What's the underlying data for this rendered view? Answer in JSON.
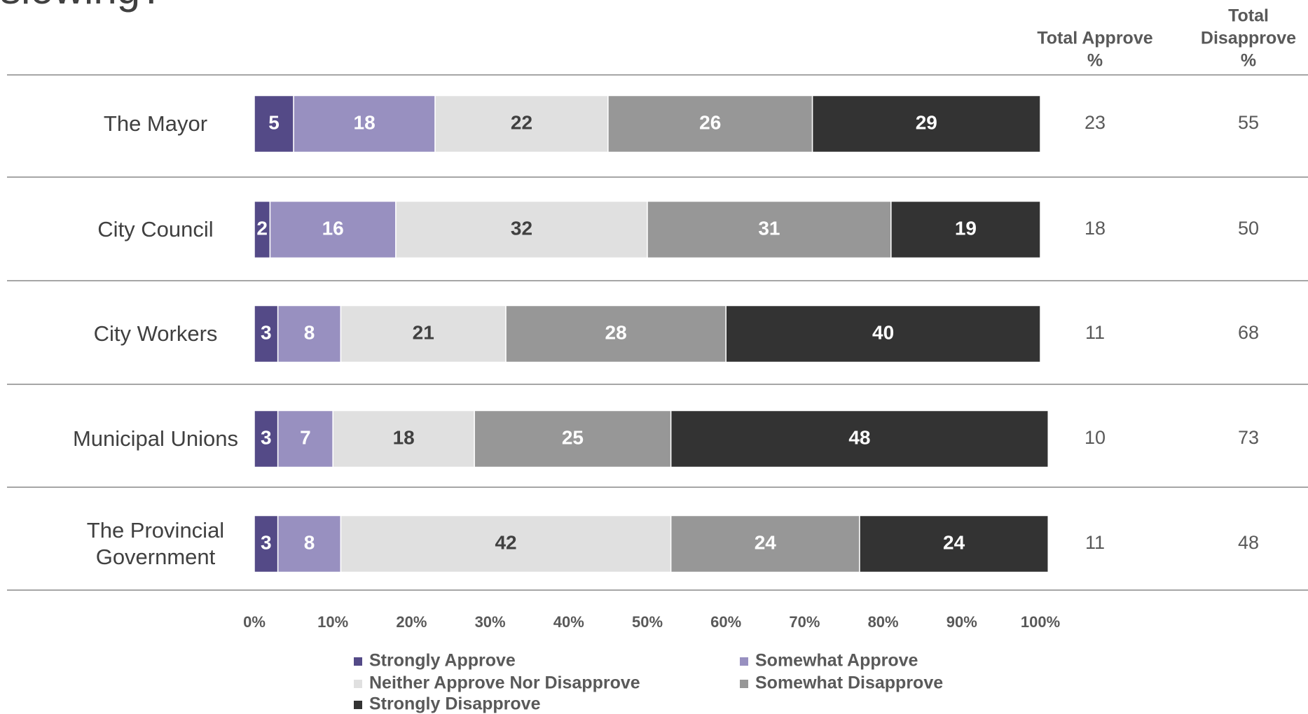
{
  "chart_data": {
    "type": "stacked-bar-horizontal",
    "title": "slowing?",
    "categories": [
      "The Mayor",
      "City Council",
      "City Workers",
      "Municipal Unions",
      "The Provincial Government"
    ],
    "series": [
      {
        "name": "Strongly Approve",
        "color": "#544a87",
        "label_color": "#ffffff",
        "values": [
          5,
          2,
          3,
          3,
          3
        ]
      },
      {
        "name": "Somewhat Approve",
        "color": "#9890c0",
        "label_color": "#ffffff",
        "values": [
          18,
          16,
          8,
          7,
          8
        ]
      },
      {
        "name": "Neither Approve Nor Disapprove",
        "color": "#e0e0e0",
        "label_color": "#404040",
        "values": [
          22,
          32,
          21,
          18,
          42
        ]
      },
      {
        "name": "Somewhat Disapprove",
        "color": "#979797",
        "label_color": "#ffffff",
        "values": [
          26,
          31,
          28,
          25,
          24
        ]
      },
      {
        "name": "Strongly Disapprove",
        "color": "#333333",
        "label_color": "#ffffff",
        "values": [
          29,
          19,
          40,
          48,
          24
        ]
      }
    ],
    "xlim": [
      0,
      100
    ],
    "xticks": [
      {
        "value": 0,
        "label": "0%"
      },
      {
        "value": 10,
        "label": "10%"
      },
      {
        "value": 20,
        "label": "20%"
      },
      {
        "value": 30,
        "label": "30%"
      },
      {
        "value": 40,
        "label": "40%"
      },
      {
        "value": 50,
        "label": "50%"
      },
      {
        "value": 60,
        "label": "60%"
      },
      {
        "value": 70,
        "label": "70%"
      },
      {
        "value": 80,
        "label": "80%"
      },
      {
        "value": 90,
        "label": "90%"
      },
      {
        "value": 100,
        "label": "100%"
      }
    ],
    "legend": "bottom",
    "columns": [
      {
        "header": [
          "Total Approve",
          "%"
        ],
        "values": [
          23,
          18,
          11,
          10,
          11
        ]
      },
      {
        "header": [
          "Total",
          "Disapprove",
          "%"
        ],
        "values": [
          55,
          50,
          68,
          73,
          48
        ]
      }
    ]
  }
}
